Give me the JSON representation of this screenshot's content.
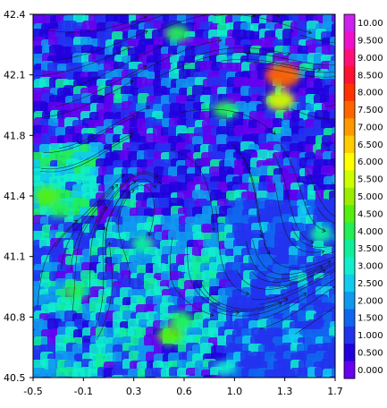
{
  "chart_data": {
    "type": "heatmap",
    "title": "",
    "xlabel": "",
    "ylabel": "",
    "xlim": [
      -0.5,
      1.7
    ],
    "ylim": [
      40.5,
      42.4
    ],
    "x_ticks": [
      "-0.5",
      "-0.1",
      "0.3",
      "0.6",
      "1.0",
      "1.3",
      "1.7"
    ],
    "y_ticks": [
      "42.4",
      "42.1",
      "41.8",
      "41.4",
      "41.1",
      "40.8",
      "40.5"
    ],
    "overlay": "streamlines",
    "colorbar": {
      "labels": [
        "10.00",
        "9.500",
        "9.000",
        "8.500",
        "8.000",
        "7.500",
        "7.000",
        "6.500",
        "6.000",
        "5.500",
        "5.000",
        "4.500",
        "4.000",
        "3.500",
        "3.000",
        "2.500",
        "2.000",
        "1.500",
        "1.000",
        "0.500",
        "0.000"
      ],
      "colors": [
        "#cc22ee",
        "#ee11cc",
        "#ff1177",
        "#ff1133",
        "#ff3300",
        "#ff6600",
        "#ff9900",
        "#ffcc00",
        "#ffff00",
        "#ccff00",
        "#99ee00",
        "#55ee11",
        "#22ee55",
        "#11ee99",
        "#11eecc",
        "#11ccee",
        "#1199ee",
        "#1166ee",
        "#2233ee",
        "#2200dd",
        "#6600ee"
      ]
    },
    "hotspots": [
      {
        "x": 1.32,
        "y": 42.08,
        "value": 7.5
      },
      {
        "x": 1.3,
        "y": 41.95,
        "value": 5.5
      },
      {
        "x": 0.55,
        "y": 42.3,
        "value": 4.0
      },
      {
        "x": -0.4,
        "y": 41.45,
        "value": 4.5
      },
      {
        "x": -0.3,
        "y": 41.38,
        "value": 4.0
      },
      {
        "x": -0.2,
        "y": 40.95,
        "value": 4.0
      },
      {
        "x": 0.5,
        "y": 40.72,
        "value": 4.5
      },
      {
        "x": 0.58,
        "y": 40.8,
        "value": 4.0
      },
      {
        "x": 0.3,
        "y": 41.2,
        "value": 3.5
      },
      {
        "x": 1.6,
        "y": 41.25,
        "value": 3.5
      },
      {
        "x": 0.9,
        "y": 41.9,
        "value": 4.0
      },
      {
        "x": 0.9,
        "y": 40.55,
        "value": 3.0
      }
    ]
  }
}
